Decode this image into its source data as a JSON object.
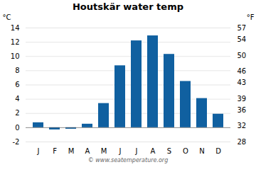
{
  "chart_data": {
    "type": "bar",
    "title": "Houtskär water temp",
    "categories": [
      "J",
      "F",
      "M",
      "A",
      "M",
      "J",
      "J",
      "A",
      "S",
      "O",
      "N",
      "D"
    ],
    "values": [
      0.7,
      -0.3,
      -0.2,
      0.5,
      3.4,
      8.7,
      12.2,
      12.9,
      10.3,
      6.5,
      4.1,
      1.9
    ],
    "color": "#1060a0",
    "ylabel": "°C",
    "ylim": [
      -2,
      14
    ],
    "yticks": [
      -2,
      0,
      2,
      4,
      6,
      8,
      10,
      12,
      14
    ],
    "y2label": "°F",
    "y2lim": [
      28,
      57
    ],
    "y2ticks": [
      28,
      32,
      36,
      39,
      43,
      46,
      50,
      54,
      57
    ],
    "grid": true,
    "caption": "© www.seatemperature.org"
  }
}
